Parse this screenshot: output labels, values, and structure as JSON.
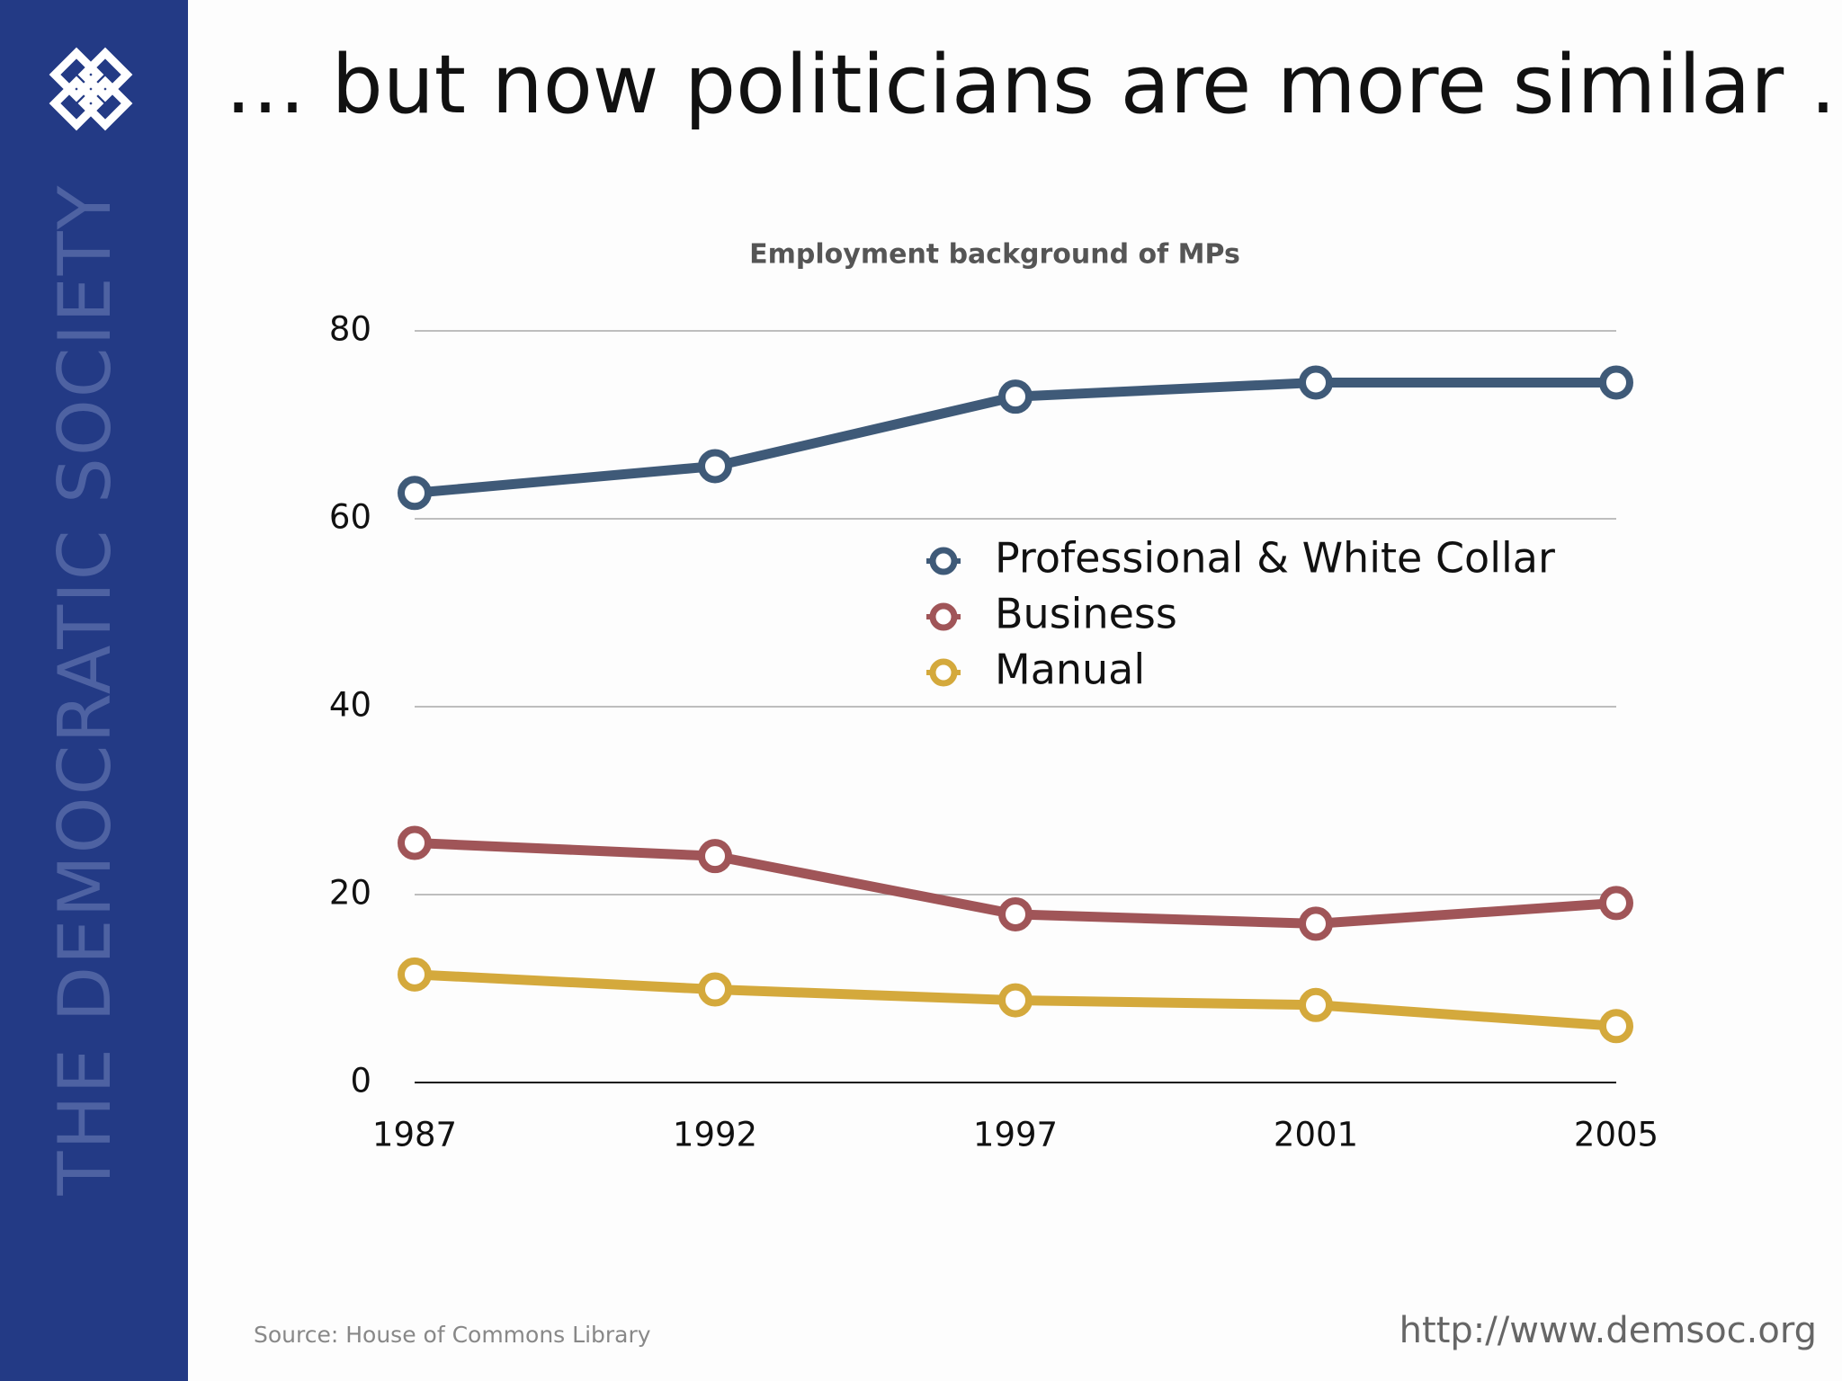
{
  "slide": {
    "title": "… but now politicians are more similar …",
    "sidebar": "THE DEMOCRATIC SOCIETY",
    "source": "Source: House of Commons Library",
    "url": "http://www.demsoc.org"
  },
  "chart_data": {
    "type": "line",
    "title": "Employment background of MPs",
    "categories": [
      "1987",
      "1992",
      "1997",
      "2001",
      "2005"
    ],
    "series": [
      {
        "name": "Professional & White Collar",
        "color": "#3f5a78",
        "values": [
          62.75,
          65.6,
          73,
          74.5,
          74.5
        ]
      },
      {
        "name": "Business",
        "color": "#a05558",
        "values": [
          25.5,
          24.1,
          17.9,
          16.9,
          19.1
        ]
      },
      {
        "name": "Manual",
        "color": "#d4a93c",
        "values": [
          11.5,
          9.9,
          8.75,
          8.25,
          6
        ]
      }
    ],
    "ylim": [
      0,
      80
    ],
    "yticks": [
      0,
      20,
      40,
      60,
      80
    ],
    "grid": true
  }
}
